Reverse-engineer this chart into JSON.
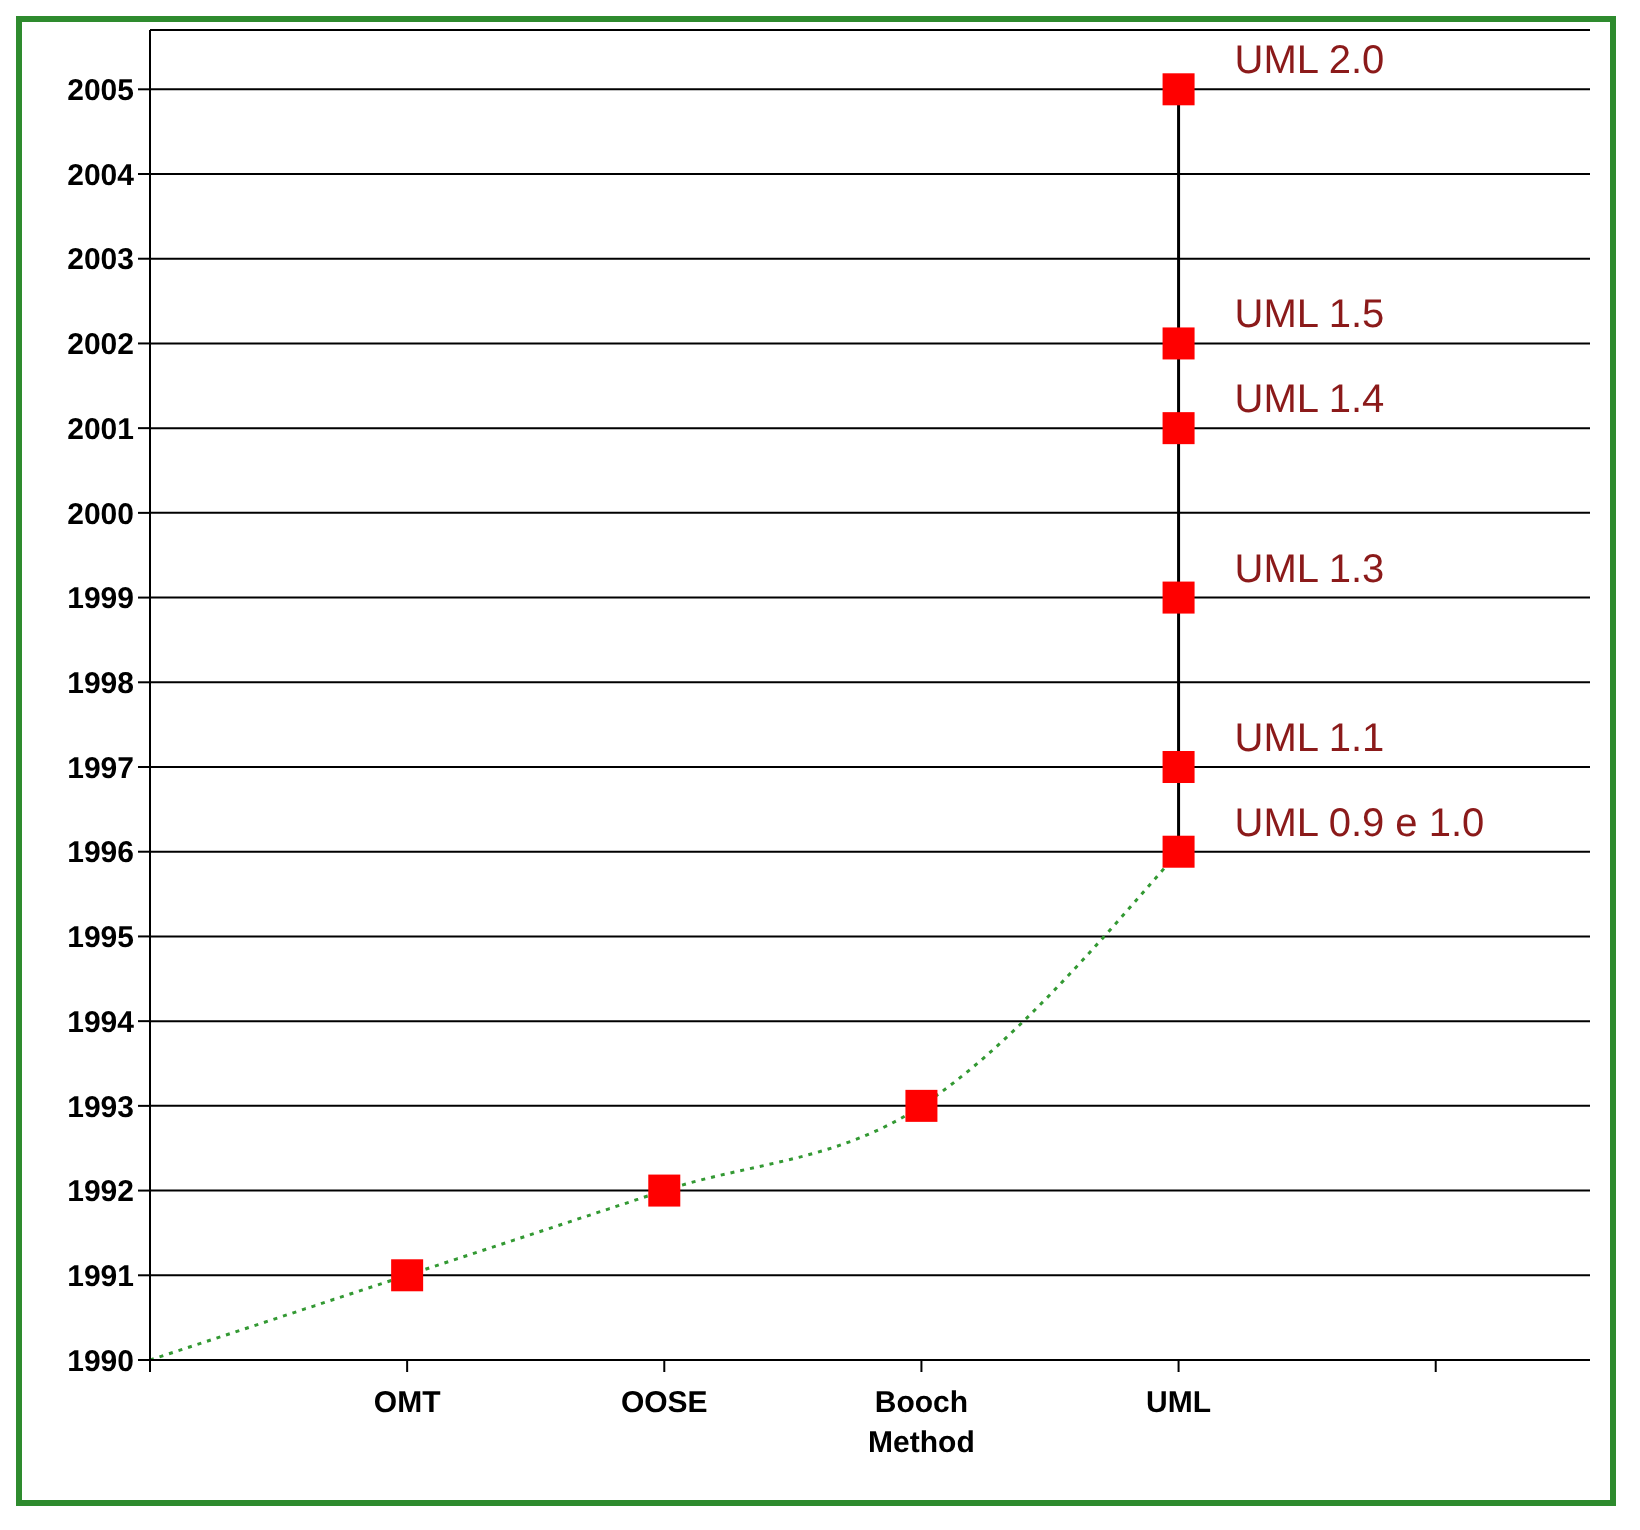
{
  "chart_data": {
    "type": "line",
    "categories": [
      null,
      "OMT",
      "OOSE",
      "Booch Method",
      "UML",
      null
    ],
    "series": [
      {
        "color": "#339933",
        "values": [
          1990,
          1991,
          1992,
          1993,
          1996,
          null
        ],
        "line_style": "dotted",
        "marker": "none"
      },
      {
        "type": "line",
        "color": "#000000",
        "x": [
          "UML",
          "UML"
        ],
        "values": [
          1996,
          2005
        ],
        "line_style": "solid",
        "marker": "none"
      },
      {
        "type": "scatter",
        "color": "#ff0000",
        "marker": "square",
        "x": [
          "OMT",
          "OOSE",
          "Booch Method",
          "UML",
          "UML",
          "UML",
          "UML",
          "UML",
          "UML"
        ],
        "values": [
          1991,
          1992,
          1993,
          1996,
          1997,
          1999,
          2001,
          2002,
          2005
        ],
        "value_labels": [
          null,
          null,
          null,
          "UML 0.9 e 1.0",
          "UML 1.1",
          "UML 1.3",
          "UML 1.4",
          "UML 1.5",
          "UML 2.0"
        ]
      }
    ],
    "ylim": [
      1990,
      2005.7
    ],
    "yticks": [
      1990,
      1991,
      1992,
      1993,
      1994,
      1995,
      1996,
      1997,
      1998,
      1999,
      2000,
      2001,
      2002,
      2003,
      2004,
      2005
    ],
    "grid": "y"
  }
}
